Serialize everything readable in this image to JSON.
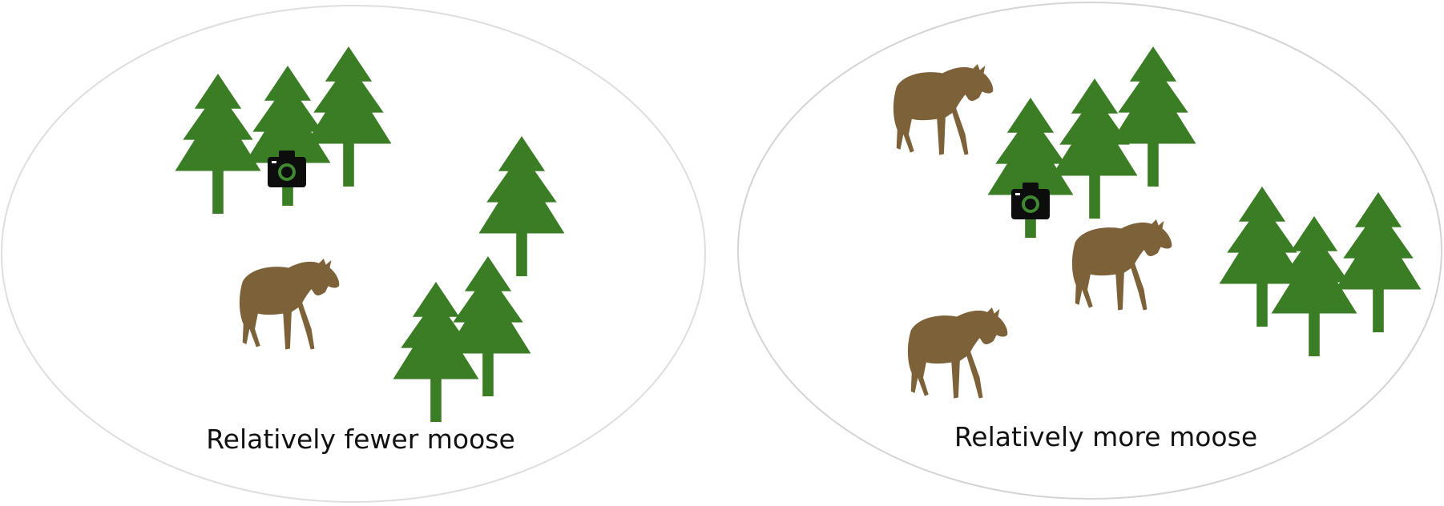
{
  "colors": {
    "tree": "#3a7d25",
    "moose": "#7d6138",
    "camera": "#0d0d0d",
    "camera_lens": "#3f8a30",
    "panel_border": "#d6d6d6",
    "background": "#ffffff"
  },
  "icons": {
    "tree": "pine-tree-icon",
    "moose": "moose-icon",
    "camera": "camera-icon"
  },
  "panels": [
    {
      "caption": "Relatively fewer moose",
      "tree_count": 6,
      "moose_count": 1,
      "camera_count": 1
    },
    {
      "caption": "Relatively more moose",
      "tree_count": 6,
      "moose_count": 3,
      "camera_count": 1
    }
  ]
}
